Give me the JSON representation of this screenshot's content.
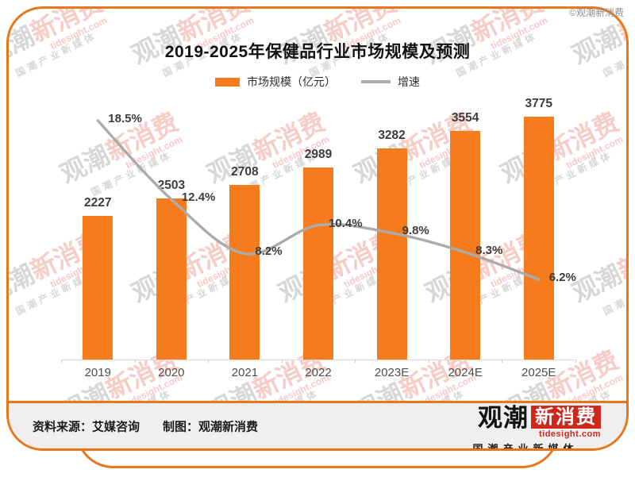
{
  "page": {
    "copyright": "©观潮新消费"
  },
  "colors": {
    "accent_orange": "#e8761b",
    "bar_orange": "#f57b1d",
    "line_gray": "#ababab",
    "logo_red": "#ce271c"
  },
  "chart": {
    "title": "2019-2025年保健品行业市场规模及预测",
    "legend": [
      {
        "label": "市场规模（亿元）",
        "type": "bar"
      },
      {
        "label": "增速",
        "type": "line"
      }
    ]
  },
  "chart_data": {
    "type": "bar",
    "title": "2019-2025年保健品行业市场规模及预测",
    "categories": [
      "2019",
      "2020",
      "2021",
      "2022",
      "2023E",
      "2024E",
      "2025E"
    ],
    "series": [
      {
        "name": "市场规模（亿元）",
        "type": "bar",
        "values": [
          2227,
          2503,
          2708,
          2989,
          3282,
          3554,
          3775
        ],
        "color": "#f57b1d"
      },
      {
        "name": "增速",
        "type": "line",
        "values": [
          18.5,
          12.4,
          8.2,
          10.4,
          9.8,
          8.3,
          6.2
        ],
        "unit": "%",
        "color": "#ababab"
      }
    ],
    "value_labels_shown": true,
    "gridlines": false,
    "legend_position": "top",
    "y_axis_shown": false
  },
  "footer": {
    "source": "资料来源：艾媒咨询",
    "credit": "制图：观潮新消费"
  },
  "logo": {
    "part1": "观潮",
    "part2": "新消费",
    "domain": "tidesight.com",
    "tagline": "国潮产业新媒体"
  },
  "watermark": {
    "part1": "观潮",
    "part2": "新消费",
    "domain": "tidesight.com",
    "tagline": "国潮产业新媒体"
  }
}
